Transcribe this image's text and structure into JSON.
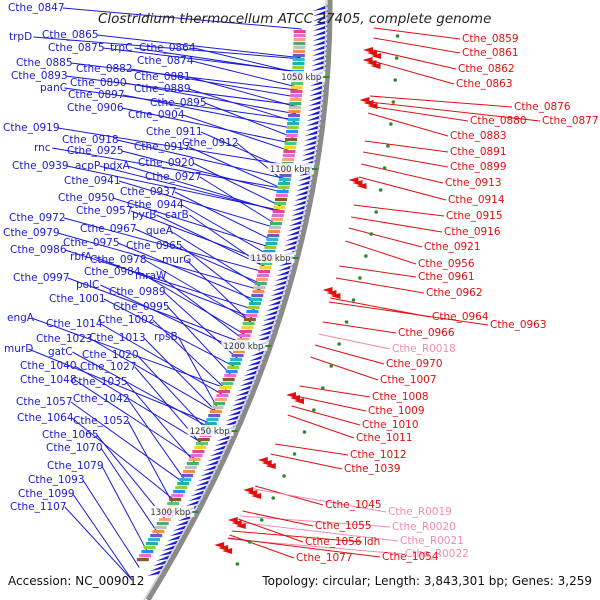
{
  "header": {
    "title": "Clostridium thermocellum ATCC 27405, complete genome"
  },
  "footer": {
    "accession": "Accession: NC_009012",
    "topology": "Topology: circular; Length: 3,843,301 bp; Genes: 3,259"
  },
  "colors": {
    "left_label": "#1a1ad6",
    "right_label": "#e01010",
    "rna_label": "#f08cb4",
    "backbone": "#888888",
    "arrow": "#1a1ad6",
    "tick_marker": "#2c8a2c"
  },
  "ticks": [
    "1050 kbp",
    "1100 kbp",
    "1150 kbp",
    "1200 kbp",
    "1250 kbp",
    "1300 kbp"
  ],
  "left_labels": [
    "Cthe_0847",
    "trpD",
    "Cthe_0865",
    "Cthe_0875",
    "trpC",
    "Cthe_0864",
    "Cthe_0874",
    "Cthe_0885",
    "Cthe_0882",
    "Cthe_0893",
    "Cthe_0881",
    "Cthe_0890",
    "panC",
    "Cthe_0889",
    "Cthe_0897",
    "Cthe_0895",
    "Cthe_0906",
    "Cthe_0904",
    "Cthe_0919",
    "Cthe_0911",
    "Cthe_0918",
    "Cthe_0912",
    "rnc",
    "Cthe_0925",
    "Cthe_0917",
    "Cthe_0920",
    "Cthe_0939",
    "acpP",
    "pdxA",
    "Cthe_0941",
    "Cthe_0927",
    "Cthe_0937",
    "Cthe_0950",
    "Cthe_0944",
    "Cthe_0957",
    "pyrB",
    "carB",
    "Cthe_0972",
    "Cthe_0967",
    "queA",
    "Cthe_0979",
    "Cthe_0975",
    "Cthe_0965",
    "Cthe_0986",
    "rbfA",
    "Cthe_0978",
    "murG",
    "Cthe_0984",
    "mraW",
    "Cthe_0997",
    "polC",
    "Cthe_0989",
    "Cthe_1001",
    "Cthe_0995",
    "Cthe_1002",
    "engA",
    "Cthe_1014",
    "rpsB",
    "Cthe_1023",
    "Cthe_1013",
    "murD",
    "gatC",
    "Cthe_1020",
    "Cthe_1040",
    "Cthe_1027",
    "Cthe_1048",
    "Cthe_1035",
    "Cthe_1057",
    "Cthe_1042",
    "Cthe_1064",
    "Cthe_1052",
    "Cthe_1065",
    "Cthe_1070",
    "Cthe_1079",
    "Cthe_1093",
    "Cthe_1099",
    "Cthe_1107"
  ],
  "right_labels": [
    "Cthe_0859",
    "Cthe_0861",
    "Cthe_0862",
    "Cthe_0863",
    "Cthe_0876",
    "Cthe_0880",
    "Cthe_0877",
    "Cthe_0883",
    "Cthe_0891",
    "Cthe_0899",
    "Cthe_0913",
    "Cthe_0914",
    "Cthe_0915",
    "Cthe_0916",
    "Cthe_0921",
    "Cthe_0956",
    "Cthe_0961",
    "Cthe_0962",
    "Cthe_0964",
    "Cthe_0963",
    "Cthe_0966",
    "Cthe_R0018",
    "Cthe_0970",
    "Cthe_1007",
    "Cthe_1008",
    "Cthe_1009",
    "Cthe_1010",
    "Cthe_1011",
    "Cthe_1012",
    "Cthe_1039",
    "Cthe_1045",
    "Cthe_R0019",
    "Cthe_R0020",
    "Cthe_1055",
    "Cthe_R0021",
    "Cthe_1056",
    "ldh",
    "Cthe_R0022",
    "Cthe_1054",
    "Cthe_1077"
  ]
}
